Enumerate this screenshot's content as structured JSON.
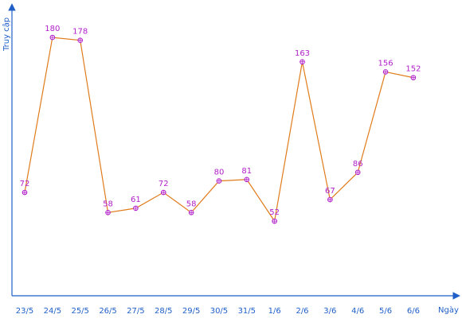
{
  "chart_data": {
    "type": "line",
    "xlabel": "Ngày",
    "ylabel": "Truy cập",
    "categories": [
      "23/5",
      "24/5",
      "25/5",
      "26/5",
      "27/5",
      "28/5",
      "29/5",
      "30/5",
      "31/5",
      "1/6",
      "2/6",
      "3/6",
      "4/6",
      "5/6",
      "6/6"
    ],
    "values": [
      72,
      180,
      178,
      58,
      61,
      72,
      58,
      80,
      81,
      52,
      163,
      67,
      86,
      156,
      152
    ],
    "ylim": [
      0,
      200
    ],
    "grid": false,
    "legend": "none",
    "colors": {
      "axis": "#1f5fc7",
      "line": "#e07b1a",
      "marker": "#b01fc9",
      "data_label": "#b01fc9",
      "tick_label": "#1f5fc7"
    }
  }
}
